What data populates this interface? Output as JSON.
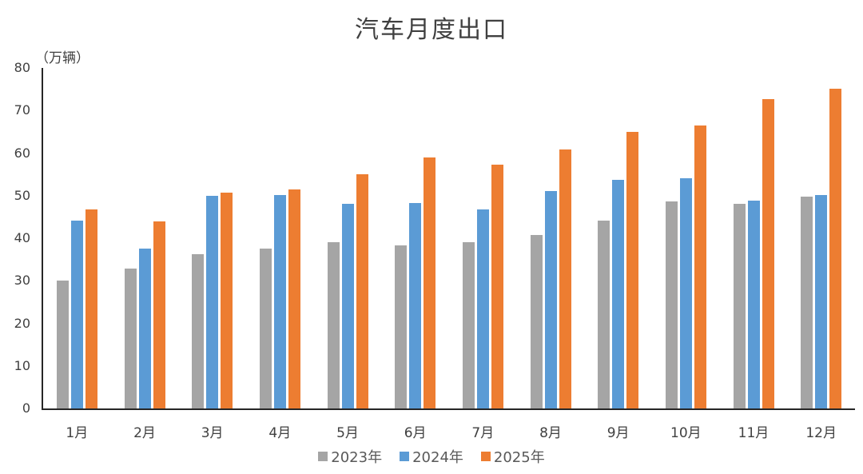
{
  "title": "汽车月度出口",
  "unit_label": "（万辆）",
  "colors": {
    "2023年": "#a5a5a5",
    "2024年": "#5b9bd5",
    "2025年": "#ed7d31"
  },
  "chart_data": {
    "type": "bar",
    "title": "汽车月度出口",
    "xlabel": "",
    "ylabel": "（万辆）",
    "ylim": [
      0,
      80
    ],
    "yticks": [
      0,
      10,
      20,
      30,
      40,
      50,
      60,
      70,
      80
    ],
    "grid": false,
    "legend_position": "bottom",
    "categories": [
      "1月",
      "2月",
      "3月",
      "4月",
      "5月",
      "6月",
      "7月",
      "8月",
      "9月",
      "10月",
      "11月",
      "12月"
    ],
    "series": [
      {
        "name": "2023年",
        "color": "#a5a5a5",
        "values": [
          30.1,
          32.8,
          36.3,
          37.6,
          39.0,
          38.3,
          39.0,
          40.7,
          44.2,
          48.6,
          48.0,
          49.7
        ]
      },
      {
        "name": "2024年",
        "color": "#5b9bd5",
        "values": [
          44.2,
          37.6,
          50.0,
          50.2,
          48.0,
          48.2,
          46.8,
          51.0,
          53.8,
          54.0,
          48.8,
          50.2
        ]
      },
      {
        "name": "2025年",
        "color": "#ed7d31",
        "values": [
          46.8,
          44.0,
          50.7,
          51.5,
          55.0,
          59.0,
          57.3,
          60.9,
          65.0,
          66.4,
          72.7,
          75.1
        ]
      }
    ]
  }
}
